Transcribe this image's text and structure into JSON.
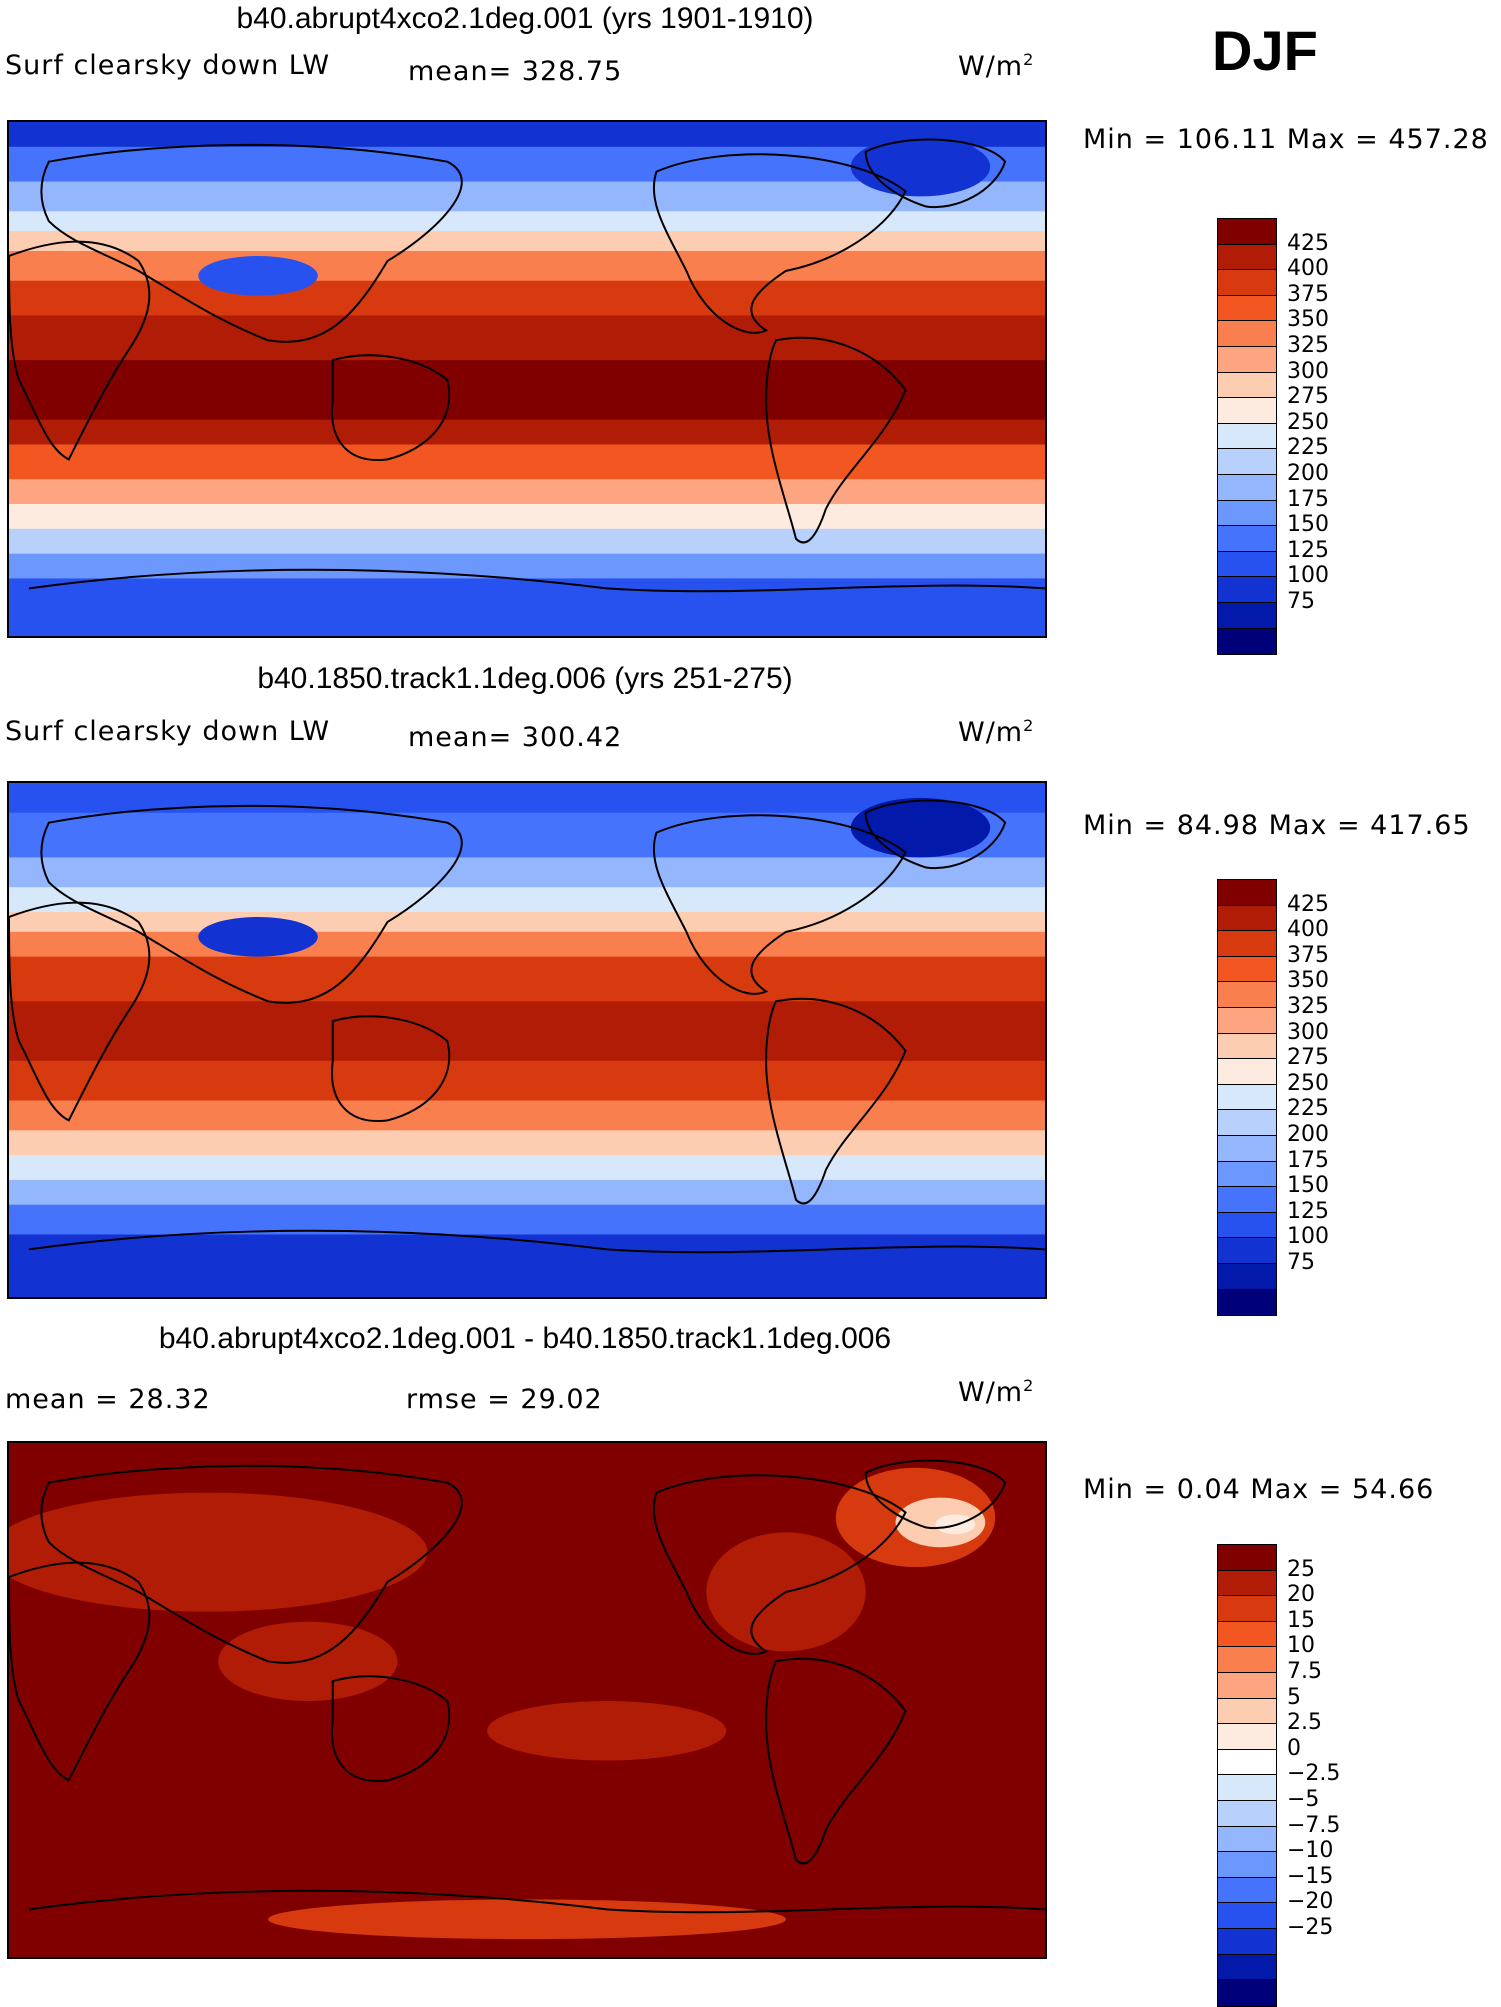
{
  "season": "DJF",
  "colors": {
    "abs": [
      "#800000",
      "#b01c06",
      "#d63a0e",
      "#f25722",
      "#fa7f4f",
      "#fda580",
      "#fdcdb2",
      "#fdebdf",
      "#d7e8fb",
      "#b8d1fc",
      "#94b6fd",
      "#6c97fd",
      "#4673fc",
      "#2752f0",
      "#1233d2",
      "#0319aa",
      "#00007a"
    ],
    "diff": [
      "#800000",
      "#b01c06",
      "#d63a0e",
      "#f25722",
      "#fa7f4f",
      "#fda580",
      "#fdcdb2",
      "#fdebdf",
      "#ffffff",
      "#d7e8fb",
      "#b8d1fc",
      "#94b6fd",
      "#6c97fd",
      "#4673fc",
      "#2752f0",
      "#1233d2",
      "#0319aa",
      "#00007a"
    ]
  },
  "panels": [
    {
      "title": "b40.abrupt4xco2.1deg.001 (yrs 1901-1910)",
      "left_label": "Surf clearsky down LW",
      "stat1": "mean= 328.75",
      "stat2": "",
      "units": "W/m",
      "units_sup": "2",
      "minmax": "Min = 106.11 Max = 457.28",
      "levels": [
        "425",
        "400",
        "375",
        "350",
        "325",
        "300",
        "275",
        "250",
        "225",
        "200",
        "175",
        "150",
        "125",
        "100",
        "75"
      ]
    },
    {
      "title": "b40.1850.track1.1deg.006 (yrs 251-275)",
      "left_label": "Surf clearsky down LW",
      "stat1": "mean= 300.42",
      "stat2": "",
      "units": "W/m",
      "units_sup": "2",
      "minmax": "Min =  84.98 Max = 417.65",
      "levels": [
        "425",
        "400",
        "375",
        "350",
        "325",
        "300",
        "275",
        "250",
        "225",
        "200",
        "175",
        "150",
        "125",
        "100",
        "75"
      ]
    },
    {
      "title": "b40.abrupt4xco2.1deg.001 - b40.1850.track1.1deg.006",
      "left_label": "mean =   28.32",
      "stat1": "",
      "stat2": "rmse =   29.02",
      "units": "W/m",
      "units_sup": "2",
      "minmax": "Min =   0.04 Max =   54.66",
      "levels": [
        "25",
        "20",
        "15",
        "10",
        "7.5",
        "5",
        "2.5",
        "0",
        "−2.5",
        "−5",
        "−7.5",
        "−10",
        "−15",
        "−20",
        "−25"
      ]
    }
  ]
}
